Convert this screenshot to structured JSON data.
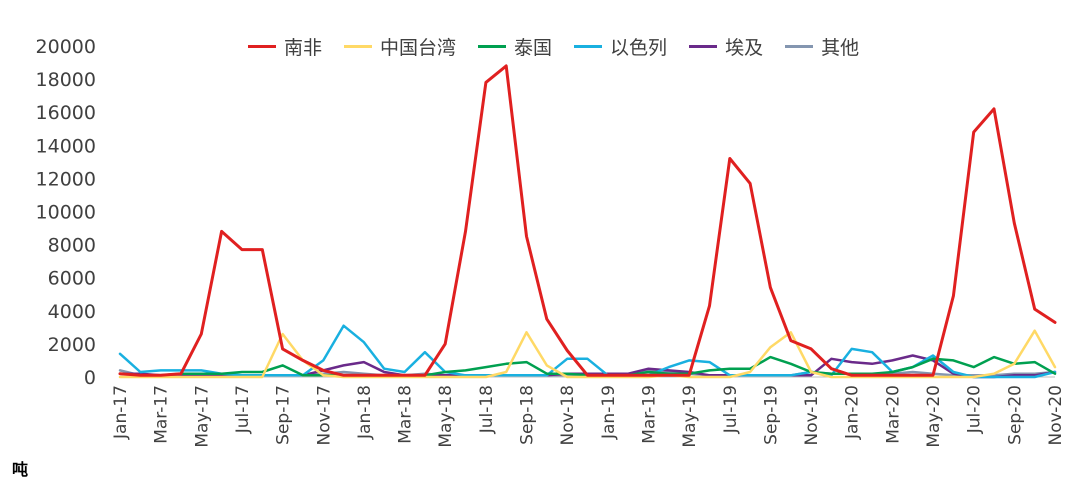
{
  "chart_data": {
    "type": "line",
    "title": "",
    "xlabel": "",
    "ylabel": "",
    "unit_label": "吨",
    "ylim": [
      0,
      20000
    ],
    "yticks": [
      0,
      2000,
      4000,
      6000,
      8000,
      10000,
      12000,
      14000,
      16000,
      18000,
      20000
    ],
    "grid": true,
    "legend_position": "top",
    "x": [
      "Jan-17",
      "Feb-17",
      "Mar-17",
      "Apr-17",
      "May-17",
      "Jun-17",
      "Jul-17",
      "Aug-17",
      "Sep-17",
      "Oct-17",
      "Nov-17",
      "Dec-17",
      "Jan-18",
      "Feb-18",
      "Mar-18",
      "Apr-18",
      "May-18",
      "Jun-18",
      "Jul-18",
      "Aug-18",
      "Sep-18",
      "Oct-18",
      "Nov-18",
      "Dec-18",
      "Jan-19",
      "Feb-19",
      "Mar-19",
      "Apr-19",
      "May-19",
      "Jun-19",
      "Jul-19",
      "Aug-19",
      "Sep-19",
      "Oct-19",
      "Nov-19",
      "Dec-19",
      "Jan-20",
      "Feb-20",
      "Mar-20",
      "Apr-20",
      "May-20",
      "Jun-20",
      "Jul-20",
      "Aug-20",
      "Sep-20",
      "Oct-20",
      "Nov-20"
    ],
    "xtick_labels": [
      "Jan-17",
      "Mar-17",
      "May-17",
      "Jul-17",
      "Sep-17",
      "Nov-17",
      "Jan-18",
      "Mar-18",
      "May-18",
      "Jul-18",
      "Sep-18",
      "Nov-18",
      "Jan-19",
      "Mar-19",
      "May-19",
      "Jul-19",
      "Sep-19",
      "Nov-19",
      "Jan-20",
      "Mar-20",
      "May-20",
      "Jul-20",
      "Sep-20",
      "Nov-20"
    ],
    "series": [
      {
        "name": "南非",
        "color": "#e02020",
        "values": [
          200,
          100,
          100,
          200,
          2600,
          8800,
          7700,
          7700,
          1700,
          1000,
          400,
          100,
          100,
          100,
          100,
          100,
          2000,
          8800,
          17800,
          18800,
          8500,
          3500,
          1600,
          100,
          100,
          100,
          100,
          100,
          100,
          4300,
          13200,
          11700,
          5400,
          2200,
          1700,
          500,
          100,
          100,
          100,
          100,
          100,
          4900,
          14800,
          16200,
          9300,
          4100,
          3300
        ]
      },
      {
        "name": "中国台湾",
        "color": "#ffd966",
        "values": [
          0,
          0,
          0,
          0,
          0,
          0,
          0,
          0,
          2600,
          1000,
          100,
          0,
          0,
          0,
          0,
          0,
          0,
          0,
          0,
          300,
          2700,
          700,
          0,
          0,
          0,
          0,
          0,
          100,
          0,
          0,
          0,
          300,
          1800,
          2700,
          300,
          0,
          0,
          0,
          0,
          0,
          0,
          0,
          0,
          200,
          800,
          2800,
          600
        ]
      },
      {
        "name": "泰国",
        "color": "#00a050",
        "values": [
          200,
          100,
          100,
          200,
          200,
          200,
          300,
          300,
          700,
          100,
          100,
          100,
          100,
          100,
          100,
          100,
          300,
          400,
          600,
          800,
          900,
          200,
          200,
          100,
          100,
          100,
          300,
          200,
          200,
          400,
          500,
          500,
          1200,
          800,
          300,
          200,
          200,
          200,
          300,
          600,
          1100,
          1000,
          600,
          1200,
          800,
          900,
          200
        ]
      },
      {
        "name": "以色列",
        "color": "#19b0e0",
        "values": [
          1400,
          300,
          400,
          400,
          400,
          200,
          100,
          100,
          100,
          100,
          1000,
          3100,
          2100,
          500,
          300,
          1500,
          300,
          100,
          100,
          100,
          100,
          100,
          1100,
          1100,
          100,
          100,
          100,
          600,
          1000,
          900,
          100,
          100,
          100,
          100,
          300,
          100,
          1700,
          1500,
          300,
          600,
          1300,
          300,
          0,
          0,
          0,
          0,
          300
        ]
      },
      {
        "name": "埃及",
        "color": "#6a2a8a",
        "values": [
          200,
          200,
          100,
          100,
          100,
          100,
          100,
          100,
          100,
          100,
          400,
          700,
          900,
          300,
          100,
          100,
          100,
          100,
          100,
          100,
          100,
          100,
          200,
          200,
          200,
          200,
          500,
          400,
          300,
          100,
          100,
          100,
          100,
          100,
          100,
          1100,
          900,
          800,
          1000,
          1300,
          1000,
          200,
          0,
          0,
          100,
          100,
          300
        ]
      },
      {
        "name": "其他",
        "color": "#8496b0",
        "values": [
          400,
          100,
          100,
          100,
          100,
          100,
          100,
          100,
          100,
          100,
          200,
          300,
          200,
          100,
          100,
          200,
          100,
          100,
          100,
          100,
          100,
          100,
          100,
          100,
          100,
          100,
          400,
          300,
          200,
          100,
          100,
          100,
          100,
          100,
          300,
          200,
          200,
          200,
          200,
          300,
          200,
          100,
          100,
          100,
          200,
          200,
          300
        ]
      }
    ]
  }
}
